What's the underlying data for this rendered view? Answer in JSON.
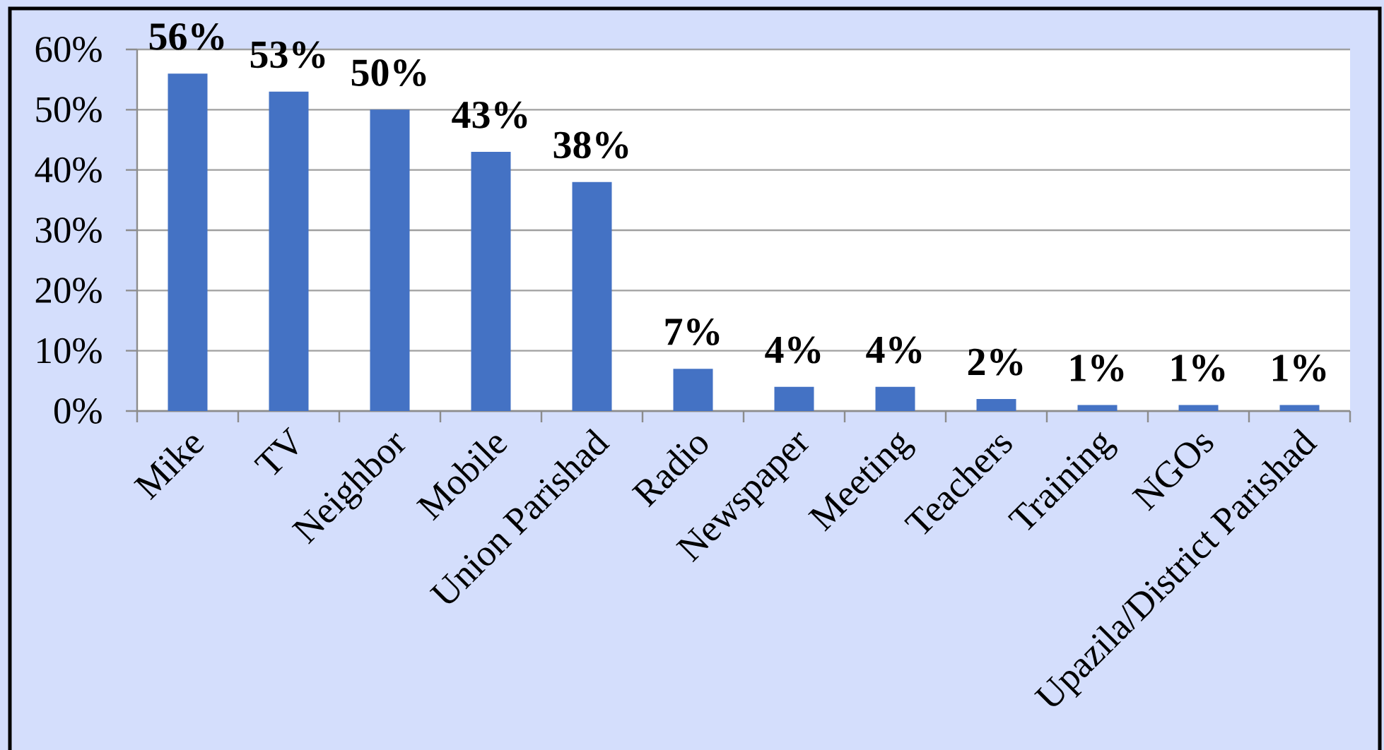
{
  "chart_data": {
    "type": "bar",
    "categories": [
      "Mike",
      "TV",
      "Neighbor",
      "Mobile",
      "Union Parishad",
      "Radio",
      "Newspaper",
      "Meeting",
      "Teachers",
      "Training",
      "NGOs",
      "Upazila/District Parishad"
    ],
    "values": [
      56,
      53,
      50,
      43,
      38,
      7,
      4,
      4,
      2,
      1,
      1,
      1
    ],
    "value_labels": [
      "56%",
      "53%",
      "50%",
      "43%",
      "38%",
      "7%",
      "4%",
      "4%",
      "2%",
      "1%",
      "1%",
      "1%"
    ],
    "color": "#4472c4",
    "ylim": [
      0,
      60
    ],
    "yticks": [
      {
        "value": 0,
        "label": "0%"
      },
      {
        "value": 10,
        "label": "10%"
      },
      {
        "value": 20,
        "label": "20%"
      },
      {
        "value": 30,
        "label": "30%"
      },
      {
        "value": 40,
        "label": "40%"
      },
      {
        "value": 50,
        "label": "50%"
      },
      {
        "value": 60,
        "label": "60%"
      }
    ],
    "grid": "y"
  }
}
